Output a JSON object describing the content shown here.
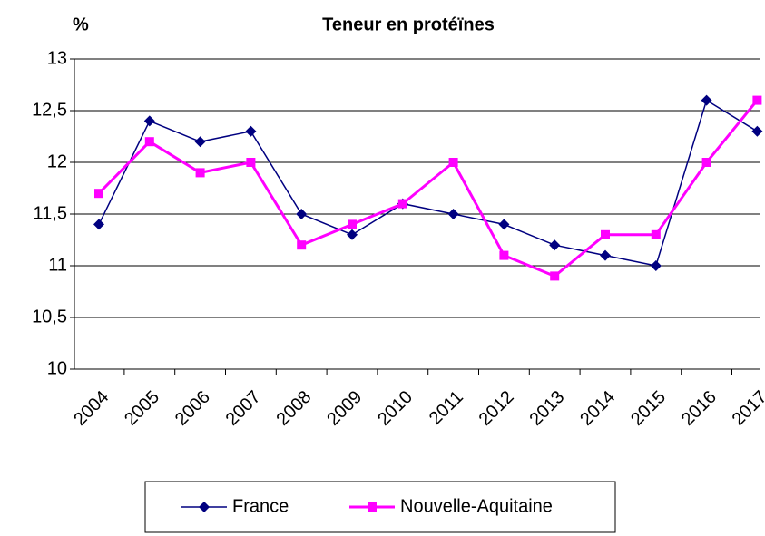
{
  "chart_data": {
    "type": "line",
    "title": "Teneur en protéïnes",
    "y_label": "%",
    "categories": [
      "2004",
      "2005",
      "2006",
      "2007",
      "2008",
      "2009",
      "2010",
      "2011",
      "2012",
      "2013",
      "2014",
      "2015",
      "2016",
      "2017"
    ],
    "series": [
      {
        "name": "France",
        "color": "#000080",
        "marker": "diamond",
        "values": [
          11.4,
          12.4,
          12.2,
          12.3,
          11.5,
          11.3,
          11.6,
          11.5,
          11.4,
          11.2,
          11.1,
          11.0,
          12.6,
          12.3
        ]
      },
      {
        "name": "Nouvelle-Aquitaine",
        "color": "#ff00ff",
        "marker": "square",
        "values": [
          11.7,
          12.2,
          11.9,
          12.0,
          11.2,
          11.4,
          11.6,
          12.0,
          11.1,
          10.9,
          11.3,
          11.3,
          12.0,
          12.6
        ]
      }
    ],
    "ylim": [
      10,
      13
    ],
    "yticks": [
      10,
      {
        "value": 10.5,
        "label": "10,5"
      },
      11,
      {
        "value": 11.5,
        "label": "11,5"
      },
      12,
      {
        "value": 12.5,
        "label": "12,5"
      },
      13
    ],
    "grid": true,
    "legend": "bottom"
  }
}
